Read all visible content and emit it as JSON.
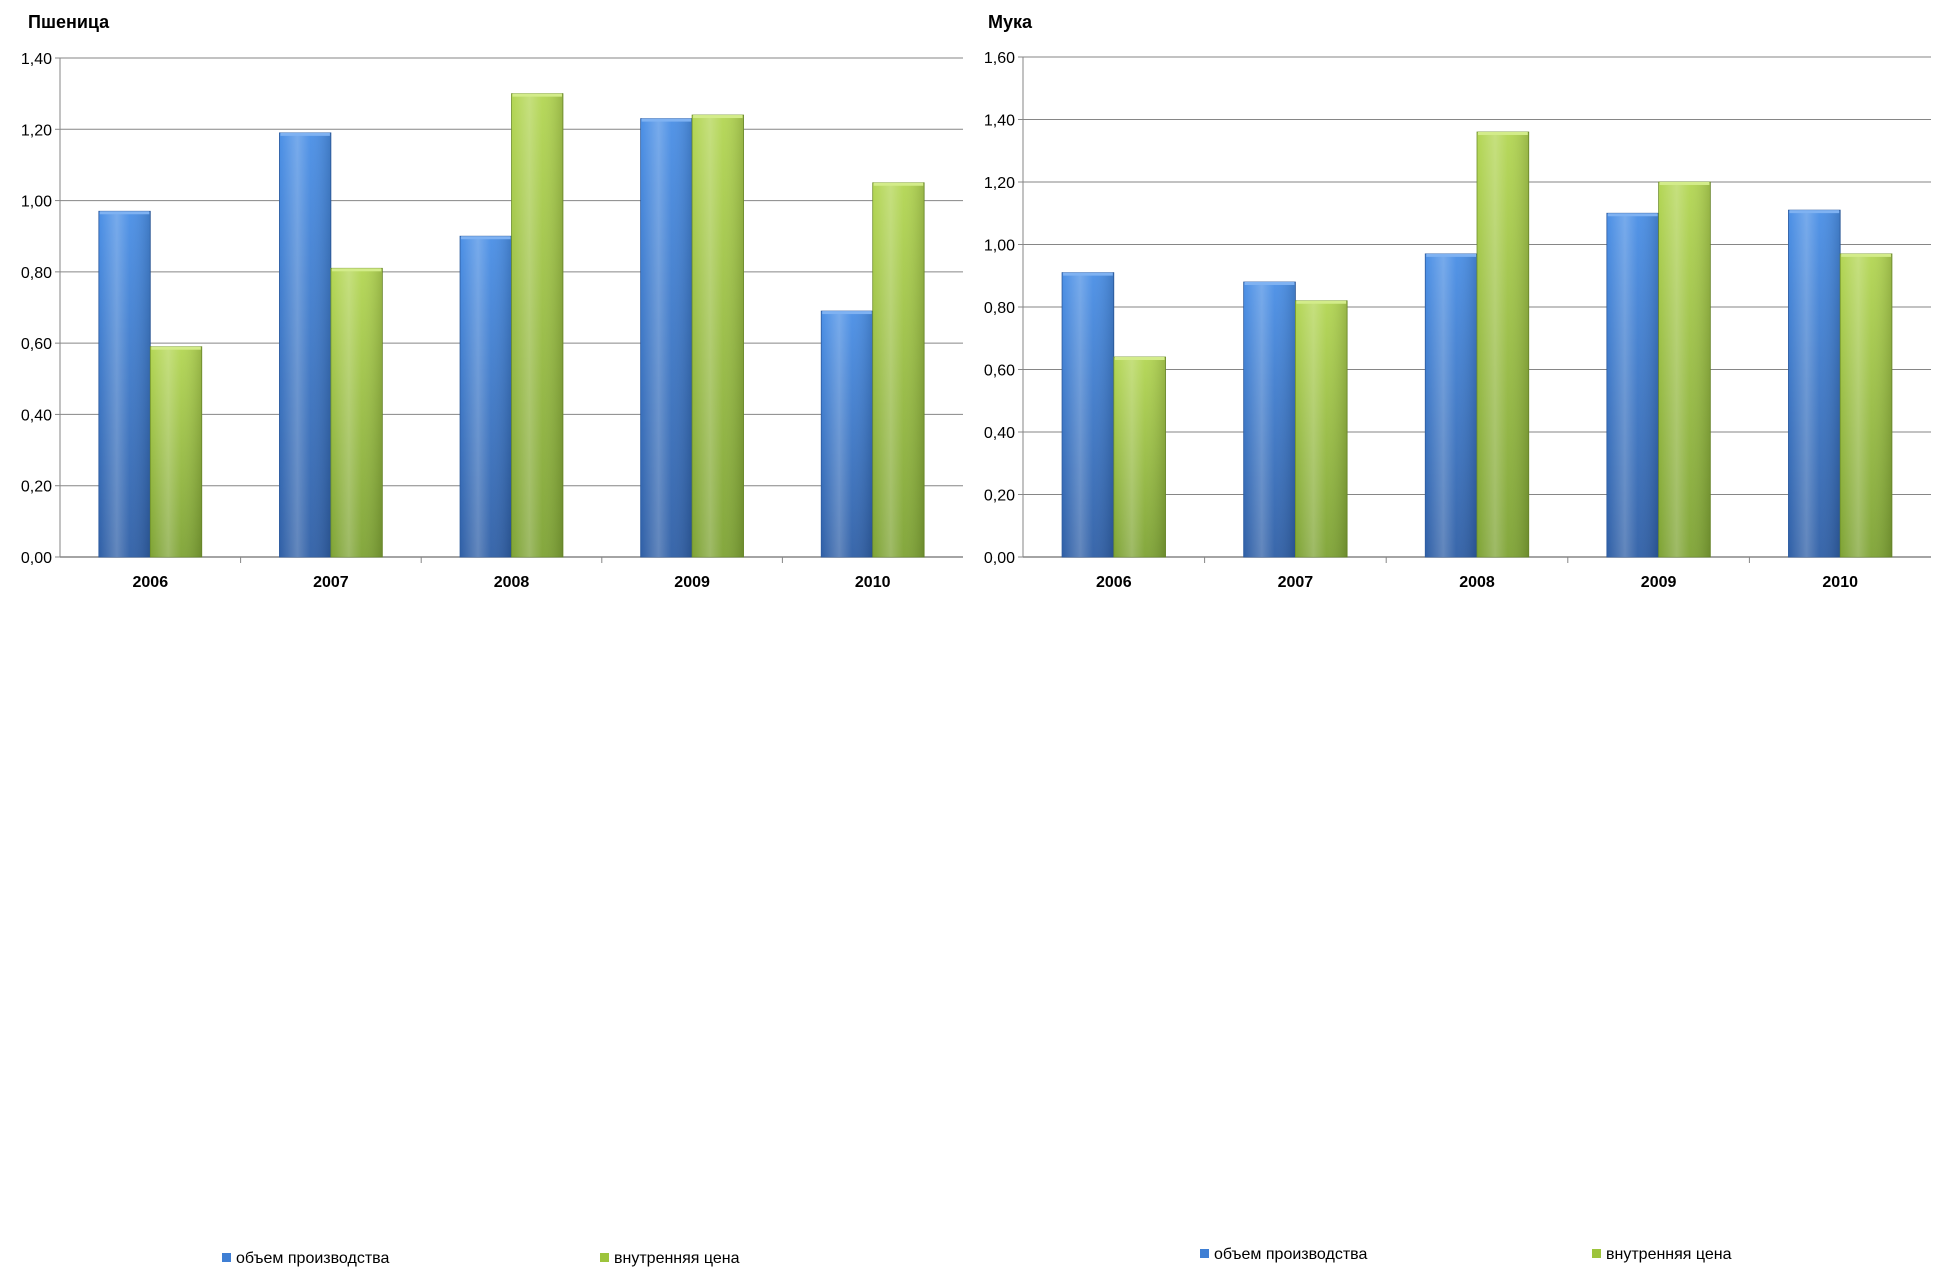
{
  "colors": {
    "production": "#3f7fd4",
    "price": "#9dc43c",
    "grid": "#868686",
    "axis": "#868686"
  },
  "legend_icons": {
    "production": "blue-square-icon",
    "price": "green-square-icon"
  },
  "chart_data": [
    {
      "type": "bar",
      "title": "Пшеница",
      "categories": [
        "2006",
        "2007",
        "2008",
        "2009",
        "2010"
      ],
      "series": [
        {
          "name": "объем производства",
          "values": [
            0.97,
            1.19,
            0.9,
            1.23,
            0.69
          ]
        },
        {
          "name": "внутренняя цена",
          "values": [
            0.59,
            0.81,
            1.3,
            1.24,
            1.05
          ]
        }
      ],
      "ylim": [
        0,
        1.4
      ],
      "yticks": [
        "0,00",
        "0,20",
        "0,40",
        "0,60",
        "0,80",
        "1,00",
        "1,20",
        "1,40"
      ],
      "grid": true,
      "legend": "bottom"
    },
    {
      "type": "bar",
      "title": "Мука",
      "categories": [
        "2006",
        "2007",
        "2008",
        "2009",
        "2010"
      ],
      "series": [
        {
          "name": "объем производства",
          "values": [
            0.91,
            0.88,
            0.97,
            1.1,
            1.11
          ]
        },
        {
          "name": "внутренняя цена",
          "values": [
            0.64,
            0.82,
            1.36,
            1.2,
            0.97
          ]
        }
      ],
      "ylim": [
        0,
        1.6
      ],
      "yticks": [
        "0,00",
        "0,20",
        "0,40",
        "0,60",
        "0,80",
        "1,00",
        "1,20",
        "1,40",
        "1,60"
      ],
      "grid": true,
      "legend": "bottom"
    }
  ]
}
